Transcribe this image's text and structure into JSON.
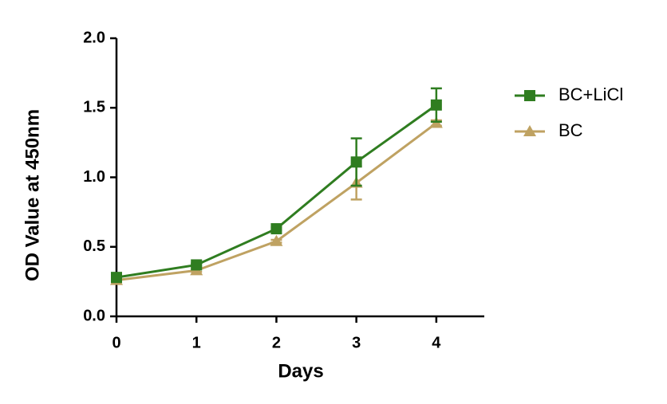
{
  "chart_data": {
    "type": "line",
    "xlabel": "Days",
    "ylabel": "OD Value at 450nm",
    "x": [
      0,
      1,
      2,
      3,
      4
    ],
    "series": [
      {
        "name": "BC+LiCl",
        "color": "#2f7d20",
        "marker": "square",
        "values": [
          0.28,
          0.37,
          0.63,
          1.11,
          1.52
        ],
        "errors": [
          0.01,
          0.01,
          0.01,
          0.17,
          0.12
        ]
      },
      {
        "name": "BC",
        "color": "#bfa262",
        "marker": "triangle",
        "values": [
          0.26,
          0.33,
          0.54,
          0.96,
          1.39
        ],
        "errors": [
          0.01,
          0.01,
          0.01,
          0.12,
          0.02
        ]
      }
    ],
    "xlim": [
      0,
      4.6
    ],
    "xticks": [
      0,
      1,
      2,
      3,
      4
    ],
    "ylim": [
      0,
      2
    ],
    "yticks": [
      {
        "value": 0,
        "label": "0.0"
      },
      0.5,
      {
        "value": 1,
        "label": "1.0"
      },
      1.5,
      {
        "value": 2,
        "label": "2.0"
      }
    ],
    "grid": false,
    "legend": "right"
  }
}
